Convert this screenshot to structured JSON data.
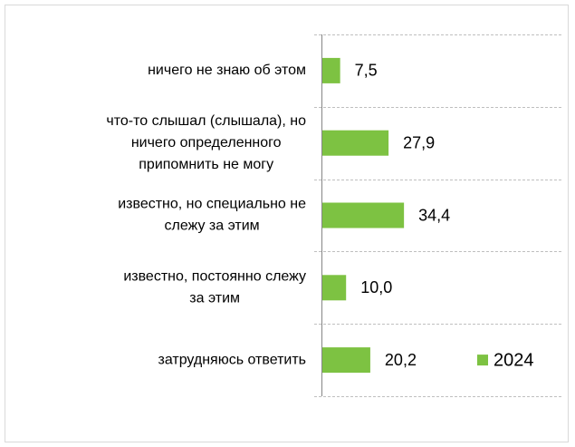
{
  "chart_data": {
    "type": "bar",
    "orientation": "horizontal",
    "categories": [
      [
        "ничего не знаю об этом"
      ],
      [
        "что-то слышал (слышала), но",
        "ничего определенного",
        "припомнить не могу"
      ],
      [
        "известно, но специально не",
        "слежу за этим"
      ],
      [
        "известно, постоянно слежу",
        "за этим"
      ],
      [
        "затрудняюсь ответить"
      ]
    ],
    "series": [
      {
        "name": "2024",
        "color": "#7dc242",
        "values": [
          7.5,
          27.9,
          34.4,
          10.0,
          20.2
        ],
        "value_labels": [
          "7,5",
          "27,9",
          "34,4",
          "10,0",
          "20,2"
        ]
      }
    ],
    "xlim": [
      0,
      100
    ],
    "grid": true,
    "legend": "right"
  }
}
